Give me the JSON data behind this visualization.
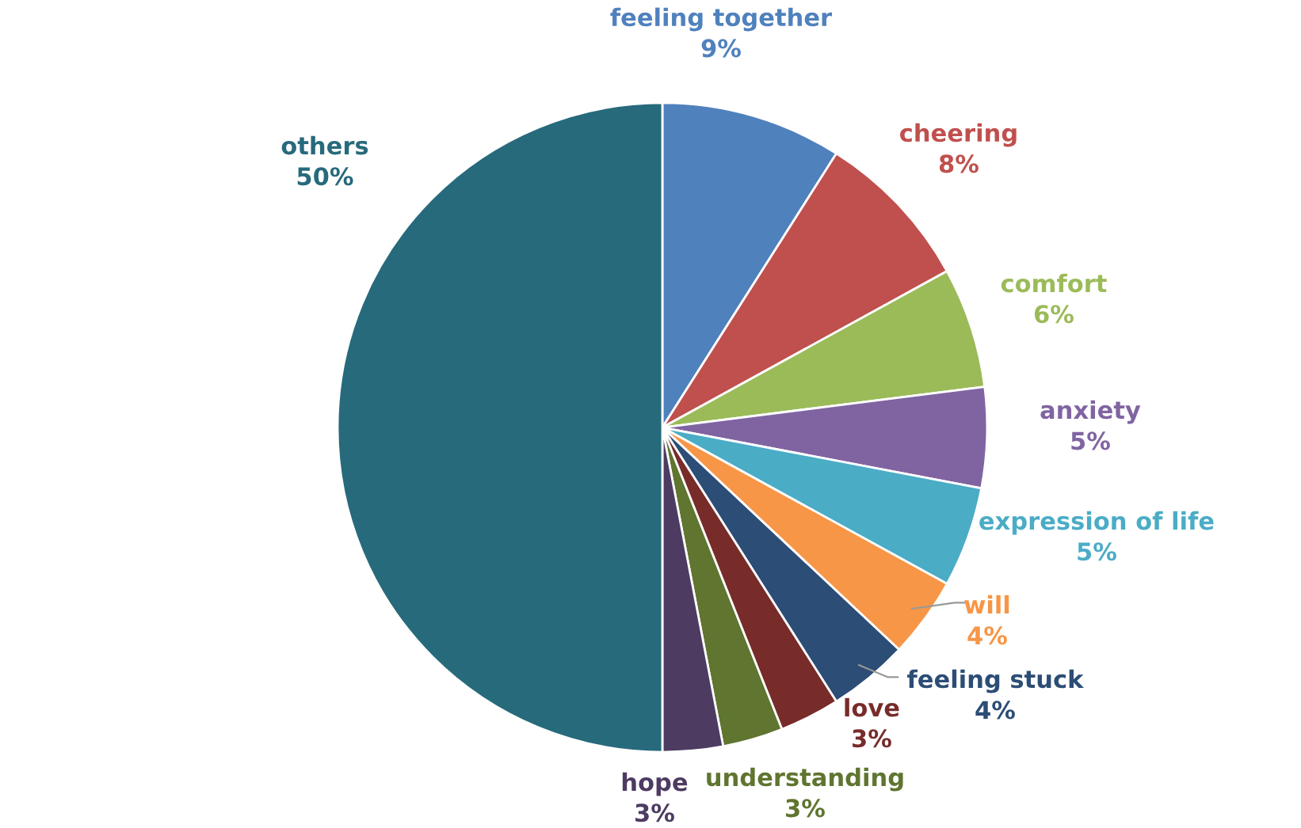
{
  "chart_data": {
    "type": "pie",
    "categories": [
      "feeling together",
      "cheering",
      "comfort",
      "anxiety",
      "expression of life",
      "will",
      "feeling stuck",
      "love",
      "understanding",
      "hope",
      "others"
    ],
    "values": [
      9,
      8,
      6,
      5,
      5,
      4,
      4,
      3,
      3,
      3,
      50
    ],
    "value_labels": [
      "9%",
      "8%",
      "6%",
      "5%",
      "5%",
      "4%",
      "4%",
      "3%",
      "3%",
      "3%",
      "50%"
    ],
    "colors": [
      "#4f81bd",
      "#c0504d",
      "#9bbb59",
      "#8064a2",
      "#4bacc6",
      "#f79646",
      "#2c4d75",
      "#772c2a",
      "#5f7530",
      "#4d3b62",
      "#276a7c"
    ]
  }
}
